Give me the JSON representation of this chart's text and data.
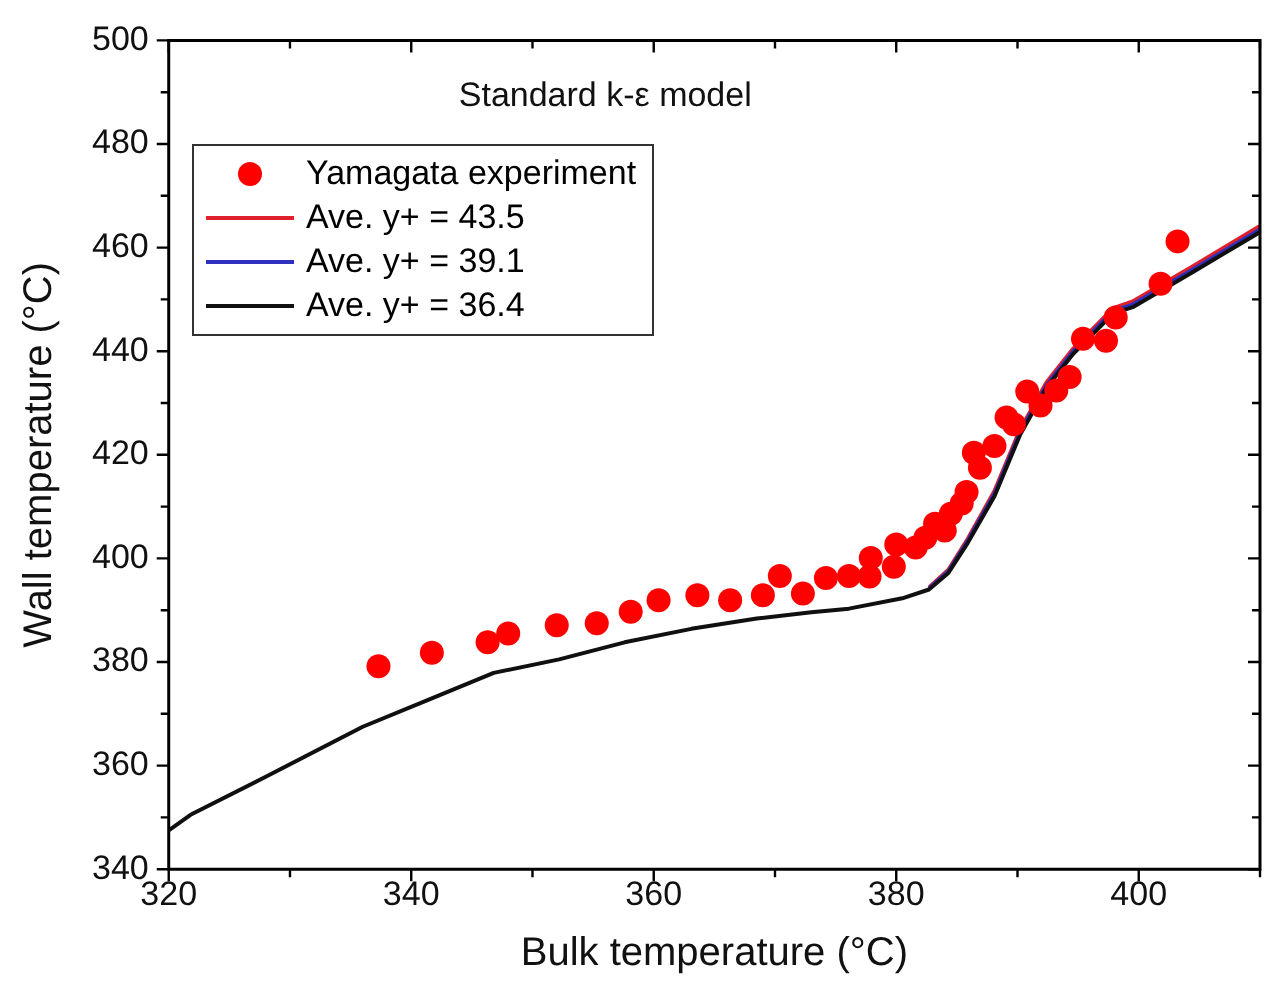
{
  "chart_data": {
    "type": "line",
    "title": "Standard k-ε model",
    "xlabel": "Bulk temperature (°C)",
    "ylabel": "Wall temperature (°C)",
    "xlim": [
      320,
      410
    ],
    "xticks": [
      320,
      340,
      360,
      380,
      400
    ],
    "ylim": [
      340,
      500
    ],
    "yticks": [
      340,
      360,
      380,
      400,
      420,
      440,
      460,
      480,
      500
    ],
    "grid": false,
    "legend": "top left",
    "series": [
      {
        "name": "Yamagata experiment",
        "type": "scatter",
        "marker": "circle",
        "color": "#ff0000",
        "x": [
          337.3,
          341.7,
          346.3,
          348.0,
          352.0,
          355.3,
          358.1,
          360.4,
          363.6,
          366.3,
          369.0,
          370.4,
          372.3,
          374.2,
          376.1,
          377.8,
          377.9,
          379.8,
          380.0,
          381.6,
          382.4,
          383.2,
          384.0,
          384.5,
          385.4,
          385.8,
          386.4,
          386.9,
          388.1,
          389.1,
          389.7,
          390.8,
          391.9,
          393.2,
          394.3,
          395.4,
          397.3,
          398.1,
          401.8,
          403.2
        ],
        "values": [
          379.2,
          381.8,
          383.8,
          385.5,
          387.1,
          387.5,
          389.7,
          391.9,
          392.9,
          391.9,
          392.9,
          396.6,
          393.2,
          396.2,
          396.6,
          396.5,
          400.1,
          398.4,
          402.7,
          402.1,
          404.0,
          406.7,
          405.4,
          408.6,
          410.6,
          412.8,
          420.4,
          417.5,
          421.7,
          427.2,
          425.9,
          432.2,
          429.5,
          432.4,
          435.0,
          442.4,
          442.0,
          446.5,
          453.0,
          461.2
        ]
      },
      {
        "name": "Ave. y+ = 43.5",
        "type": "line",
        "marker": "none",
        "color": "#e0202a",
        "x": [
          382.7,
          384.3,
          385.9,
          388.1,
          390.2,
          392.4,
          394.6,
          397.9,
          399.5,
          404.4,
          410
        ],
        "values": [
          394.4,
          397.8,
          403.8,
          413.0,
          424.8,
          434.0,
          440.5,
          448.3,
          449.6,
          456.3,
          464.2
        ]
      },
      {
        "name": "Ave. y+ = 39.1",
        "type": "line",
        "marker": "none",
        "color": "#3030c0",
        "x": [
          382.7,
          384.3,
          385.9,
          388.1,
          390.2,
          392.4,
          394.6,
          397.9,
          399.5,
          404.4,
          410
        ],
        "values": [
          394.2,
          397.5,
          403.4,
          412.5,
          424.3,
          433.5,
          440.0,
          447.8,
          449.0,
          455.7,
          463.5
        ]
      },
      {
        "name": "Ave. y+ = 36.4",
        "type": "line",
        "marker": "none",
        "color": "#101010",
        "x": [
          320,
          321.8,
          327.8,
          336,
          341.4,
          346.8,
          352.2,
          357.6,
          363.1,
          368.5,
          373,
          376.1,
          380.5,
          382.7,
          384.3,
          385.9,
          388.1,
          390.2,
          392.4,
          394.6,
          397.9,
          399.5,
          404.4,
          410
        ],
        "values": [
          347.5,
          350.5,
          357.6,
          367.5,
          372.7,
          377.9,
          380.5,
          383.8,
          386.4,
          388.4,
          389.6,
          390.3,
          392.3,
          394.0,
          397.2,
          403.0,
          412.0,
          423.8,
          433.0,
          439.5,
          447.3,
          448.5,
          455.2,
          463.0
        ]
      }
    ]
  }
}
